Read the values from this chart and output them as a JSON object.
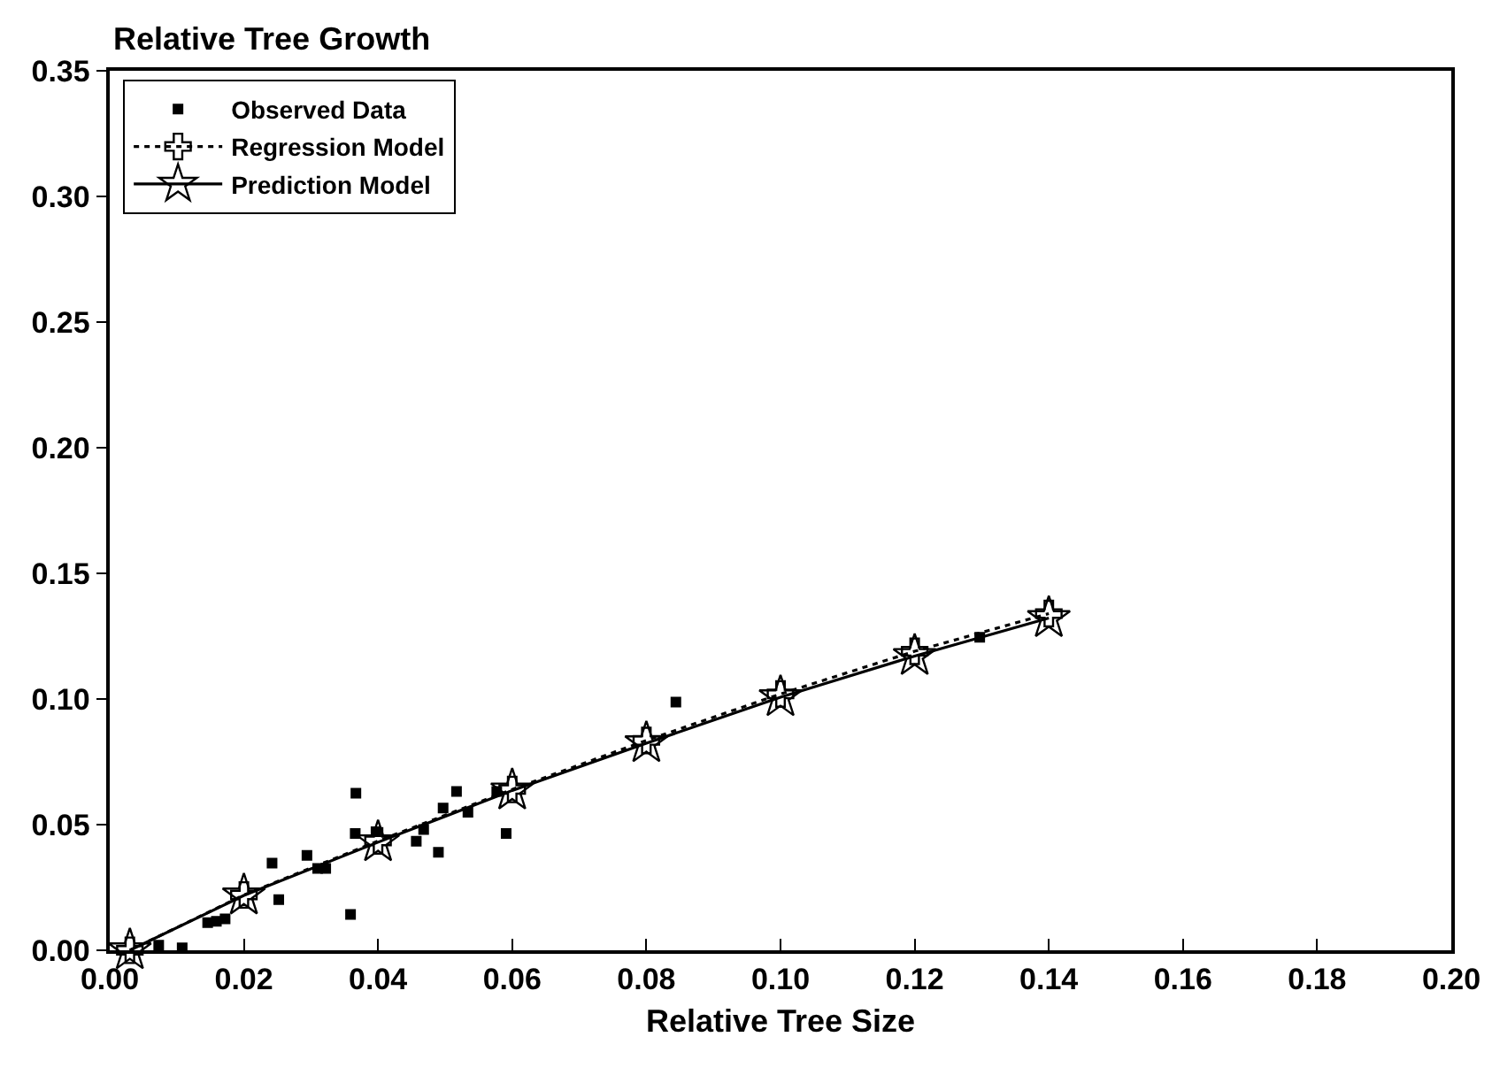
{
  "chart_data": {
    "type": "scatter",
    "ylabel": "Relative Tree Growth",
    "xlabel": "Relative Tree Size",
    "xlim": [
      0,
      0.2
    ],
    "xticks": [
      {
        "value": 0,
        "label": "0.00"
      },
      0.02,
      0.04,
      0.06,
      0.08,
      {
        "value": 0.1,
        "label": "0.10"
      },
      0.12,
      0.14,
      0.16,
      0.18,
      {
        "value": 0.2,
        "label": "0.20"
      }
    ],
    "ylim": [
      0,
      0.35
    ],
    "yticks": [
      {
        "value": 0,
        "label": "0.00"
      },
      0.05,
      {
        "value": 0.1,
        "label": "0.10"
      },
      0.15,
      {
        "value": 0.2,
        "label": "0.20"
      },
      0.25,
      {
        "value": 0.3,
        "label": "0.30"
      },
      0.35
    ],
    "grid": false,
    "legend": "top left",
    "series": [
      {
        "name": "Observed Data",
        "marker": "square",
        "color": "#000000",
        "x": [
          0.0073,
          0.0108,
          0.0146,
          0.0159,
          0.0172,
          0.0242,
          0.0252,
          0.0294,
          0.031,
          0.0322,
          0.0359,
          0.0367,
          0.0366,
          0.0397,
          0.0457,
          0.0468,
          0.049,
          0.0497,
          0.0517,
          0.0534,
          0.0577,
          0.0591,
          0.0844,
          0.1297
        ],
        "values": [
          0.002,
          0.001,
          0.011,
          0.0115,
          0.0125,
          0.0347,
          0.0202,
          0.0378,
          0.0326,
          0.0326,
          0.0143,
          0.0625,
          0.0465,
          0.0472,
          0.0434,
          0.0481,
          0.039,
          0.0566,
          0.0632,
          0.0549,
          0.0632,
          0.0465,
          0.0988,
          0.1246
        ]
      },
      {
        "name": "Regression Model",
        "type": "line",
        "marker": "cross",
        "line_style": "dotted",
        "color": "#000000",
        "x": [
          0.003,
          0.02,
          0.04,
          0.06,
          0.08,
          0.1,
          0.12,
          0.14
        ],
        "values": [
          0.0,
          0.022,
          0.0435,
          0.064,
          0.0835,
          0.102,
          0.119,
          0.134
        ]
      },
      {
        "name": "Prediction Model",
        "type": "line",
        "marker": "star",
        "line_style": "solid",
        "color": "#000000",
        "x": [
          0.003,
          0.02,
          0.04,
          0.06,
          0.08,
          0.1,
          0.12,
          0.14
        ],
        "values": [
          0.0,
          0.0218,
          0.043,
          0.0636,
          0.0824,
          0.1007,
          0.1171,
          0.1322
        ]
      }
    ]
  }
}
